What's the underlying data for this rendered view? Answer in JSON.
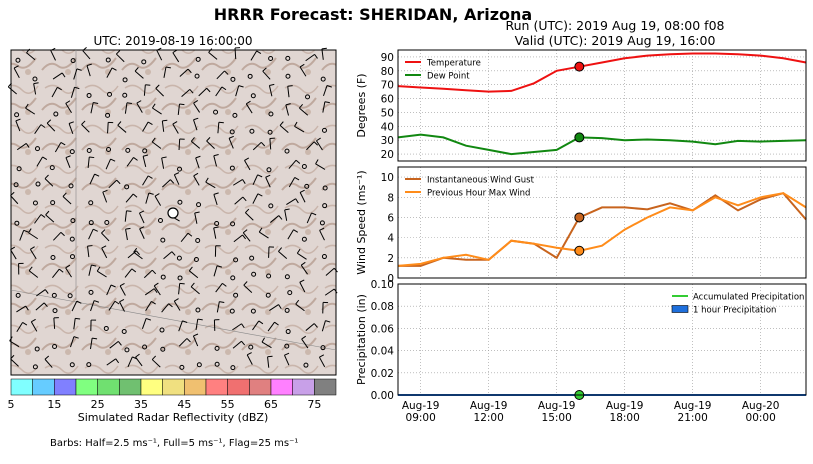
{
  "figure": {
    "title": "HRRR Forecast: SHERIDAN, Arizona",
    "run_line": "Run (UTC): 2019 Aug 19, 08:00 f08",
    "valid_line": "Valid (UTC): 2019 Aug 19, 16:00"
  },
  "map": {
    "title": "UTC: 2019-08-19 16:00:00",
    "colorbar": {
      "label": "Simulated Radar Reflectivity (dBZ)",
      "ticks": [
        "5",
        "15",
        "25",
        "35",
        "45",
        "55",
        "65",
        "75"
      ],
      "colors": [
        "#80ffff",
        "#66ccff",
        "#8080ff",
        "#80ff80",
        "#70e070",
        "#70c070",
        "#ffff80",
        "#f0e080",
        "#f0c070",
        "#ff8080",
        "#f07070",
        "#e08080",
        "#ff80ff",
        "#c8a0e8",
        "#808080"
      ]
    },
    "barbs_note": "Barbs: Half=2.5 ms⁻¹, Full=5 ms⁻¹, Flag=25 ms⁻¹"
  },
  "x_ticks": [
    "Aug-19\n09:00",
    "Aug-19\n12:00",
    "Aug-19\n15:00",
    "Aug-19\n18:00",
    "Aug-19\n21:00",
    "Aug-20\n00:00"
  ],
  "chart_data": [
    {
      "type": "line",
      "ylabel": "Degrees (F)",
      "ylim": [
        15,
        95
      ],
      "yticks": [
        20,
        30,
        40,
        50,
        60,
        70,
        80,
        90
      ],
      "grid": true,
      "legend": "top-left",
      "x": [
        "2019-08-19 08:00",
        "2019-08-19 09:00",
        "2019-08-19 10:00",
        "2019-08-19 11:00",
        "2019-08-19 12:00",
        "2019-08-19 13:00",
        "2019-08-19 14:00",
        "2019-08-19 15:00",
        "2019-08-19 16:00",
        "2019-08-19 17:00",
        "2019-08-19 18:00",
        "2019-08-19 19:00",
        "2019-08-19 20:00",
        "2019-08-19 21:00",
        "2019-08-19 22:00",
        "2019-08-19 23:00",
        "2019-08-20 00:00",
        "2019-08-20 01:00",
        "2019-08-20 02:00"
      ],
      "series": [
        {
          "name": "Temperature",
          "color": "#ee1111",
          "values": [
            69,
            68,
            67,
            66,
            65,
            65.5,
            71,
            80,
            83,
            86,
            89,
            91,
            92,
            92.5,
            92.5,
            92,
            91,
            89,
            86
          ]
        },
        {
          "name": "Dew Point",
          "color": "#118811",
          "values": [
            32,
            34,
            32,
            26,
            23,
            20,
            21.5,
            23,
            32,
            31.5,
            30,
            30.5,
            30,
            29,
            27,
            29.5,
            29,
            29.5,
            30
          ]
        }
      ],
      "marker_at": "2019-08-19 16:00"
    },
    {
      "type": "line",
      "ylabel": "Wind Speed (ms⁻¹)",
      "ylim": [
        0,
        11
      ],
      "yticks": [
        0,
        2,
        4,
        6,
        8,
        10
      ],
      "grid": true,
      "legend": "top-left",
      "x": [
        "2019-08-19 08:00",
        "2019-08-19 09:00",
        "2019-08-19 10:00",
        "2019-08-19 11:00",
        "2019-08-19 12:00",
        "2019-08-19 13:00",
        "2019-08-19 14:00",
        "2019-08-19 15:00",
        "2019-08-19 16:00",
        "2019-08-19 17:00",
        "2019-08-19 18:00",
        "2019-08-19 19:00",
        "2019-08-19 20:00",
        "2019-08-19 21:00",
        "2019-08-19 22:00",
        "2019-08-19 23:00",
        "2019-08-20 00:00",
        "2019-08-20 01:00",
        "2019-08-20 02:00"
      ],
      "series": [
        {
          "name": "Instantaneous Wind Gust",
          "color": "#c8641e",
          "values": [
            1.2,
            1.2,
            2,
            1.8,
            1.8,
            3.7,
            3.4,
            2,
            6,
            7,
            7,
            6.8,
            7.4,
            6.7,
            8.2,
            6.7,
            7.8,
            8.4,
            5.8
          ]
        },
        {
          "name": "Previous Hour Max Wind",
          "color": "#ff8c1a",
          "values": [
            1.2,
            1.4,
            2,
            2.3,
            1.8,
            3.7,
            3.4,
            3,
            2.7,
            3.2,
            4.8,
            6,
            7,
            6.7,
            8,
            7.2,
            8,
            8.4,
            7
          ]
        }
      ],
      "marker_at": "2019-08-19 16:00"
    },
    {
      "type": "bar",
      "ylabel": "Precipitation (in)",
      "ylim": [
        0,
        0.1
      ],
      "yticks": [
        "0.00",
        "0.02",
        "0.04",
        "0.06",
        "0.08",
        "0.10"
      ],
      "grid": true,
      "legend": "top-right",
      "x": [
        "2019-08-19 08:00",
        "2019-08-19 09:00",
        "2019-08-19 10:00",
        "2019-08-19 11:00",
        "2019-08-19 12:00",
        "2019-08-19 13:00",
        "2019-08-19 14:00",
        "2019-08-19 15:00",
        "2019-08-19 16:00",
        "2019-08-19 17:00",
        "2019-08-19 18:00",
        "2019-08-19 19:00",
        "2019-08-19 20:00",
        "2019-08-19 21:00",
        "2019-08-19 22:00",
        "2019-08-19 23:00",
        "2019-08-20 00:00",
        "2019-08-20 01:00",
        "2019-08-20 02:00"
      ],
      "series": [
        {
          "name": "Accumulated Precipitation",
          "color": "#33cc33",
          "values": [
            0,
            0,
            0,
            0,
            0,
            0,
            0,
            0,
            0,
            0,
            0,
            0,
            0,
            0,
            0,
            0,
            0,
            0,
            0
          ]
        },
        {
          "name": "1 hour Precipitation",
          "color": "#1e6fdc",
          "values": [
            0,
            0,
            0,
            0,
            0,
            0,
            0,
            0,
            0,
            0,
            0,
            0,
            0,
            0,
            0,
            0,
            0,
            0,
            0
          ]
        }
      ],
      "marker_at": "2019-08-19 16:00"
    }
  ]
}
